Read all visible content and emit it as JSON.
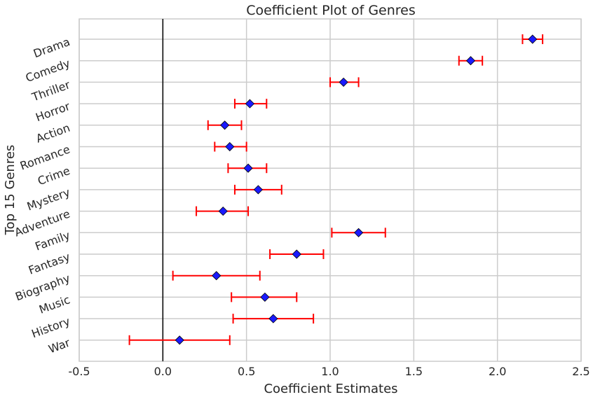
{
  "chart_data": {
    "type": "scatter",
    "title": "Coefficient Plot of Genres",
    "xlabel": "Coefficient Estimates",
    "ylabel": "Top 15 Genres",
    "xlim": [
      -0.5,
      2.5
    ],
    "xticks": [
      -0.5,
      0.0,
      0.5,
      1.0,
      1.5,
      2.0,
      2.5
    ],
    "xtick_labels": [
      "-0.5",
      "0.0",
      "0.5",
      "1.0",
      "1.5",
      "2.0",
      "2.5"
    ],
    "grid": true,
    "reference_line_x": 0,
    "categories": [
      "Drama",
      "Comedy",
      "Thriller",
      "Horror",
      "Action",
      "Romance",
      "Crime",
      "Mystery",
      "Adventure",
      "Family",
      "Fantasy",
      "Biography",
      "Music",
      "History",
      "War"
    ],
    "values": [
      2.21,
      1.84,
      1.08,
      0.52,
      0.37,
      0.4,
      0.51,
      0.57,
      0.36,
      1.17,
      0.8,
      0.32,
      0.61,
      0.66,
      0.1
    ],
    "ci_low": [
      2.15,
      1.77,
      1.0,
      0.43,
      0.27,
      0.31,
      0.39,
      0.43,
      0.2,
      1.01,
      0.64,
      0.06,
      0.41,
      0.42,
      -0.2
    ],
    "ci_high": [
      2.27,
      1.91,
      1.17,
      0.62,
      0.47,
      0.5,
      0.62,
      0.71,
      0.51,
      1.33,
      0.96,
      0.58,
      0.8,
      0.9,
      0.4
    ],
    "colors": {
      "marker": "#1a1aff",
      "marker_edge": "#000000",
      "errorbar": "#ff0000",
      "grid": "#cccccc",
      "refline": "#000000",
      "axes_edge": "#cccccc"
    }
  }
}
